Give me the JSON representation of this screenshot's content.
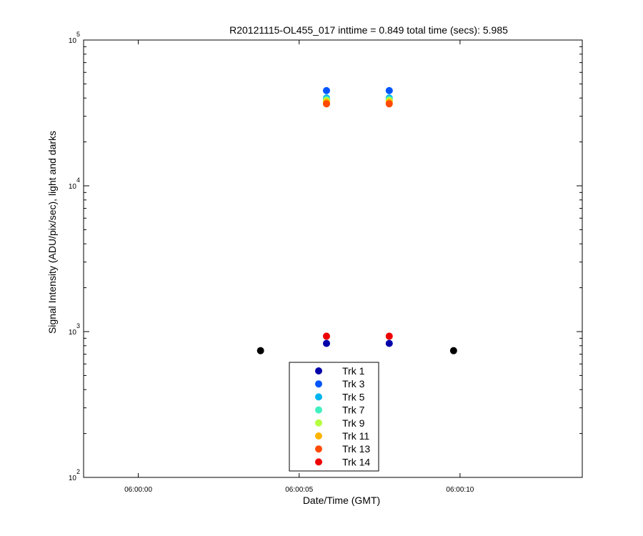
{
  "chart_data": {
    "type": "scatter",
    "title": "R20121115-OL455_017 inttime = 0.849 total time (secs): 5.985",
    "xlabel": "Date/Time (GMT)",
    "ylabel": "Signal Intensity (ADU/pix/sec), light and darks",
    "x_tick_labels": [
      "06:00:00",
      "06:00:05",
      "06:00:10"
    ],
    "x_tick_values": [
      0,
      5,
      10
    ],
    "x_range_seconds": [
      -1.7,
      13.8
    ],
    "y_scale": "log",
    "ylim": [
      100,
      100000
    ],
    "y_ticks": [
      {
        "base": "10",
        "exp": "2",
        "value": 100
      },
      {
        "base": "10",
        "exp": "3",
        "value": 1000
      },
      {
        "base": "10",
        "exp": "4",
        "value": 10000
      },
      {
        "base": "10",
        "exp": "5",
        "value": 100000
      }
    ],
    "grid": false,
    "legend_position": "bottom-center",
    "series": [
      {
        "name": "Trk 1",
        "color": "#0000aa",
        "points": [
          {
            "x": "06:00:05.85",
            "y": 830
          },
          {
            "x": "06:00:07.80",
            "y": 830
          }
        ]
      },
      {
        "name": "Trk 3",
        "color": "#0055ff",
        "points": [
          {
            "x": "06:00:05.85",
            "y": 45000
          },
          {
            "x": "06:00:07.80",
            "y": 45000
          }
        ]
      },
      {
        "name": "Trk 5",
        "color": "#00b4f0",
        "points": [
          {
            "x": "06:00:05.85",
            "y": 40000
          },
          {
            "x": "06:00:07.80",
            "y": 40000
          }
        ]
      },
      {
        "name": "Trk 7",
        "color": "#40f0c0",
        "points": [
          {
            "x": "06:00:05.85",
            "y": 39000
          },
          {
            "x": "06:00:07.80",
            "y": 39000
          }
        ]
      },
      {
        "name": "Trk 9",
        "color": "#b4ff40",
        "points": [
          {
            "x": "06:00:05.85",
            "y": 38500
          },
          {
            "x": "06:00:07.80",
            "y": 38500
          }
        ]
      },
      {
        "name": "Trk 11",
        "color": "#ffb400",
        "points": [
          {
            "x": "06:00:05.85",
            "y": 37500
          },
          {
            "x": "06:00:07.80",
            "y": 37500
          }
        ]
      },
      {
        "name": "Trk 13",
        "color": "#ff4a00",
        "points": [
          {
            "x": "06:00:05.85",
            "y": 36500
          },
          {
            "x": "06:00:07.80",
            "y": 36500
          }
        ]
      },
      {
        "name": "Trk 14",
        "color": "#ee0000",
        "points": [
          {
            "x": "06:00:05.85",
            "y": 930
          },
          {
            "x": "06:00:07.80",
            "y": 930
          }
        ]
      }
    ],
    "dark_points": {
      "color": "#000000",
      "points": [
        {
          "x": "06:00:03.80",
          "y": 740
        },
        {
          "x": "06:00:09.80",
          "y": 740
        }
      ]
    }
  }
}
